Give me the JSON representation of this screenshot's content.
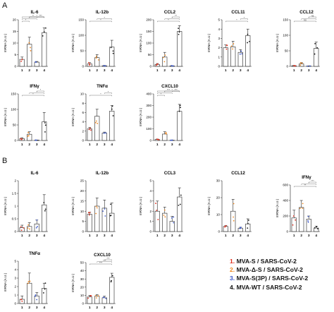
{
  "panels": [
    {
      "letter": "A"
    },
    {
      "letter": "B"
    }
  ],
  "legend": {
    "items": [
      {
        "number": "1.",
        "label": "MVA-S / SARS-CoV-2",
        "color": "#e0301e"
      },
      {
        "number": "2.",
        "label": "MVA-Δ-S / SARS-CoV-2",
        "color": "#f08a24"
      },
      {
        "number": "3.",
        "label": "MVA-S(3P) / SARS-CoV-2",
        "color": "#3a56c8"
      },
      {
        "number": "4.",
        "label": "MVA-WT / SARS-CoV-2",
        "color": "#111111"
      }
    ]
  },
  "group_colors": [
    "#e0301e",
    "#f08a24",
    "#3a56c8",
    "#111111"
  ],
  "chart_data": [
    {
      "type": "bar",
      "panel": "A",
      "title": "IL-6",
      "ylabel": "mRNA (A.U.)",
      "categories": [
        "1",
        "2",
        "3",
        "4"
      ],
      "values": [
        3,
        9.5,
        1.8,
        14.5
      ],
      "errors": [
        1,
        3,
        0.3,
        2
      ],
      "yticks": [
        0,
        5,
        10,
        15,
        20
      ],
      "ylim": [
        0,
        20
      ],
      "brackets": [
        [
          1,
          2
        ],
        [
          1,
          3
        ],
        [
          1,
          4
        ],
        [
          2,
          3
        ],
        [
          2,
          4
        ],
        [
          3,
          4
        ]
      ],
      "bracket_labels": [
        "*",
        "*",
        "*",
        "*",
        "*",
        "***"
      ]
    },
    {
      "type": "bar",
      "panel": "A",
      "title": "IL-12b",
      "ylabel": "mRNA (A.U.)",
      "categories": [
        "1",
        "2",
        "3",
        "4"
      ],
      "values": [
        8,
        28,
        2,
        62
      ],
      "errors": [
        4,
        10,
        1,
        22
      ],
      "yticks": [
        0,
        50,
        100,
        150
      ],
      "ylim": [
        0,
        150
      ],
      "brackets": [
        [
          1,
          4
        ],
        [
          2,
          4
        ]
      ],
      "bracket_labels": [
        "*",
        "*"
      ]
    },
    {
      "type": "bar",
      "panel": "A",
      "title": "CCL2",
      "ylabel": "mRNA (A.U.)",
      "categories": [
        "1",
        "2",
        "3",
        "4"
      ],
      "values": [
        8,
        40,
        2,
        150
      ],
      "errors": [
        4,
        20,
        1,
        25
      ],
      "yticks": [
        0,
        50,
        100,
        150,
        200
      ],
      "ylim": [
        0,
        200
      ],
      "brackets": [
        [
          1,
          4
        ],
        [
          2,
          4
        ],
        [
          3,
          4
        ]
      ],
      "bracket_labels": [
        "*",
        "*",
        "**"
      ]
    },
    {
      "type": "bar",
      "panel": "A",
      "title": "CCL11",
      "ylabel": "mRNA (A.U.)",
      "categories": [
        "1",
        "2",
        "3",
        "4"
      ],
      "values": [
        2,
        2.1,
        1.5,
        3.3
      ],
      "errors": [
        0.3,
        0.6,
        0.3,
        0.7
      ],
      "yticks": [
        0,
        1,
        2,
        3,
        4,
        5
      ],
      "ylim": [
        0,
        5
      ],
      "brackets": [
        [
          1,
          4
        ],
        [
          3,
          4
        ]
      ],
      "bracket_labels": [
        "*",
        "*"
      ]
    },
    {
      "type": "bar",
      "panel": "A",
      "title": "CCL12",
      "ylabel": "mRNA (A.U.)",
      "categories": [
        "1",
        "2",
        "3",
        "4"
      ],
      "values": [
        2,
        8,
        1,
        58
      ],
      "errors": [
        1,
        4,
        0.5,
        20
      ],
      "yticks": [
        0,
        50,
        100,
        150
      ],
      "ylim": [
        0,
        150
      ],
      "brackets": [
        [
          1,
          4
        ],
        [
          2,
          4
        ],
        [
          3,
          4
        ]
      ],
      "bracket_labels": [
        "ns",
        "*",
        "ns"
      ]
    },
    {
      "type": "bar",
      "panel": "A",
      "title": "IFNγ",
      "ylabel": "mRNA (A.U.)",
      "categories": [
        "1",
        "2",
        "3",
        "4"
      ],
      "values": [
        6,
        20,
        1,
        60
      ],
      "errors": [
        3,
        8,
        0.5,
        30
      ],
      "yticks": [
        0,
        50,
        100,
        150
      ],
      "ylim": [
        0,
        150
      ],
      "brackets": [
        [
          1,
          4
        ],
        [
          2,
          4
        ],
        [
          3,
          4
        ]
      ],
      "bracket_labels": [
        "*",
        "*",
        "*"
      ]
    },
    {
      "type": "bar",
      "panel": "A",
      "title": "TNFα",
      "ylabel": "mRNA (A.U.)",
      "categories": [
        "1",
        "2",
        "3",
        "4"
      ],
      "values": [
        2.5,
        5.2,
        1.6,
        6.3
      ],
      "errors": [
        0.3,
        1.5,
        0.2,
        1.2
      ],
      "yticks": [
        0,
        2,
        4,
        6,
        8,
        10
      ],
      "ylim": [
        0,
        10
      ],
      "brackets": [
        [
          1,
          4
        ],
        [
          3,
          4
        ]
      ],
      "bracket_labels": [
        "*",
        "*"
      ]
    },
    {
      "type": "bar",
      "panel": "A",
      "title": "CXCL10",
      "ylabel": "mRNA (A.U.)",
      "categories": [
        "1",
        "2",
        "3",
        "4"
      ],
      "values": [
        8,
        55,
        2,
        250
      ],
      "errors": [
        4,
        20,
        1,
        60
      ],
      "yticks": [
        0,
        100,
        200,
        300,
        400
      ],
      "ylim": [
        0,
        400
      ],
      "brackets": [
        [
          1,
          2
        ],
        [
          1,
          3
        ],
        [
          1,
          4
        ],
        [
          2,
          4
        ],
        [
          3,
          4
        ]
      ],
      "bracket_labels": [
        "*",
        "*",
        "***",
        "*",
        "***"
      ]
    },
    {
      "type": "bar",
      "panel": "B",
      "title": "IL-6",
      "ylabel": "mRNA (A.U.)",
      "categories": [
        "1",
        "2",
        "3",
        "4"
      ],
      "values": [
        0.15,
        0.2,
        0.3,
        1.05
      ],
      "errors": [
        0.1,
        0.15,
        0.15,
        0.4
      ],
      "yticks": [
        0,
        0.5,
        1.0,
        1.5,
        2.0
      ],
      "ylim": [
        0,
        2.0
      ],
      "brackets": [],
      "bracket_labels": []
    },
    {
      "type": "bar",
      "panel": "B",
      "title": "IL-12b",
      "ylabel": "mRNA (A.U.)",
      "categories": [
        "1",
        "2",
        "3",
        "4"
      ],
      "values": [
        8.5,
        12.5,
        11.5,
        9
      ],
      "errors": [
        1,
        4,
        4,
        5
      ],
      "yticks": [
        0,
        5,
        10,
        15,
        20,
        25
      ],
      "ylim": [
        0,
        25
      ],
      "brackets": [],
      "bracket_labels": []
    },
    {
      "type": "bar",
      "panel": "B",
      "title": "CCL3",
      "ylabel": "mRNA (A.U.)",
      "categories": [
        "1",
        "2",
        "3",
        "4"
      ],
      "values": [
        2,
        1.8,
        1.0,
        3.4
      ],
      "errors": [
        1,
        0.6,
        0.5,
        0.9
      ],
      "yticks": [
        0,
        1,
        2,
        3,
        4,
        5
      ],
      "ylim": [
        0,
        5
      ],
      "brackets": [],
      "bracket_labels": []
    },
    {
      "type": "bar",
      "panel": "B",
      "title": "CCL12",
      "ylabel": "mRNA (A.U.)",
      "categories": [
        "1",
        "2",
        "3",
        "4"
      ],
      "values": [
        3,
        12,
        2,
        4.5
      ],
      "errors": [
        0.5,
        7,
        0.5,
        3
      ],
      "yticks": [
        0,
        10,
        20,
        30
      ],
      "ylim": [
        0,
        30
      ],
      "brackets": [],
      "bracket_labels": []
    },
    {
      "type": "bar",
      "panel": "B",
      "title": "IFNγ",
      "ylabel": "mRNA (A.U.)",
      "categories": [
        "1",
        "2",
        "3",
        "4"
      ],
      "values": [
        175,
        310,
        160,
        45
      ],
      "errors": [
        100,
        90,
        40,
        25
      ],
      "yticks": [
        0,
        200,
        400,
        600
      ],
      "ylim": [
        0,
        600
      ],
      "brackets": [
        [
          1,
          4
        ],
        [
          2,
          4
        ],
        [
          3,
          4
        ]
      ],
      "bracket_labels": [
        "**",
        "*",
        "***"
      ]
    },
    {
      "type": "bar",
      "panel": "B",
      "title": "TNFα",
      "ylabel": "mRNA (A.U.)",
      "categories": [
        "1",
        "2",
        "3",
        "4"
      ],
      "values": [
        0.5,
        2.4,
        0.9,
        1.8
      ],
      "errors": [
        0.4,
        1.2,
        0.4,
        0.6
      ],
      "yticks": [
        0,
        1,
        2,
        3,
        4,
        5
      ],
      "ylim": [
        0,
        5
      ],
      "brackets": [],
      "bracket_labels": []
    },
    {
      "type": "bar",
      "panel": "B",
      "title": "CXCL10",
      "ylabel": "mRNA (A.U.)",
      "categories": [
        "1",
        "2",
        "3",
        "4"
      ],
      "values": [
        8,
        9,
        7,
        32
      ],
      "errors": [
        2,
        2,
        2,
        5
      ],
      "yticks": [
        0,
        10,
        20,
        30,
        40,
        50
      ],
      "ylim": [
        0,
        50
      ],
      "brackets": [
        [
          1,
          4
        ],
        [
          2,
          4
        ],
        [
          3,
          4
        ]
      ],
      "bracket_labels": [
        "***",
        "***",
        "***"
      ]
    }
  ]
}
